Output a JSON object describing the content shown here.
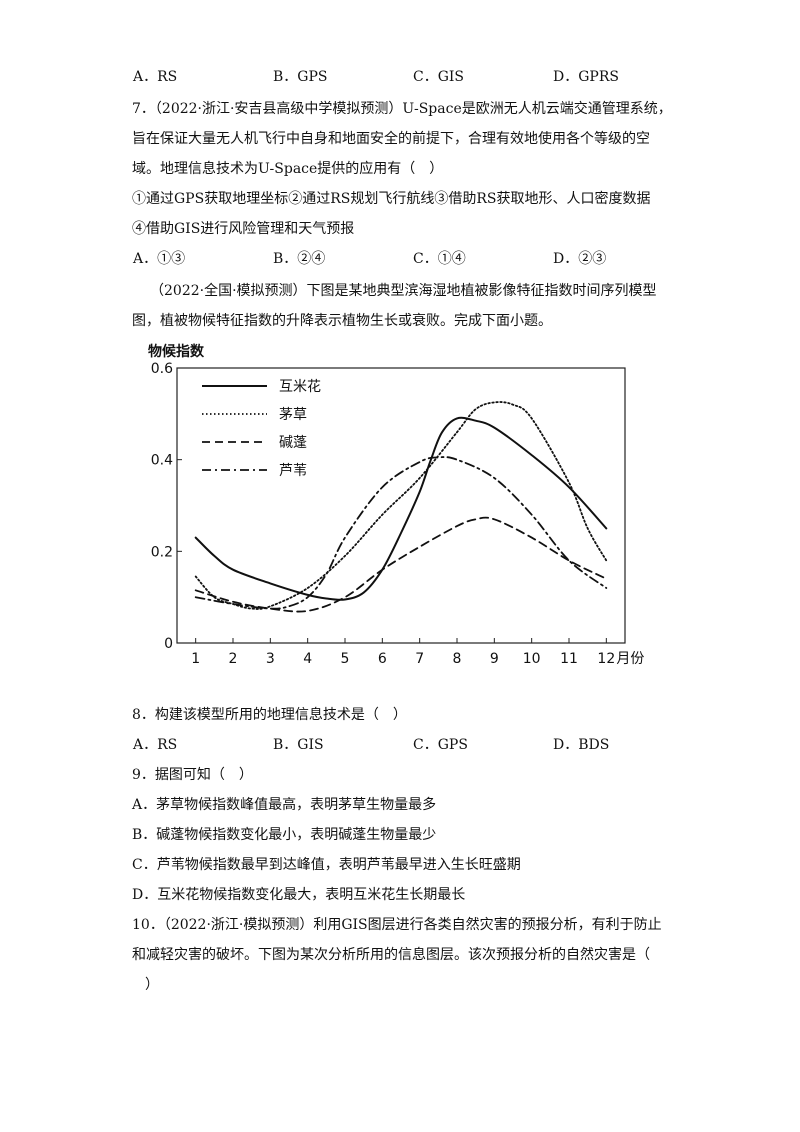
{
  "q6_options": [
    "A．RS",
    "B．GPS",
    "C．GIS",
    "D．GPRS"
  ],
  "q7": {
    "lines": [
      "7．（2022·浙江·安吉县高级中学模拟预测）U-Space是欧洲无人机云端交通管理系统，",
      "旨在保证大量无人机飞行中自身和地面安全的前提下，合理有效地使用各个等级的空",
      "域。地理信息技术为U-Space提供的应用有（　）",
      "①通过GPS获取地理坐标②通过RS规划飞行航线③借助RS获取地形、人口密度数据",
      "④借助GIS进行风险管理和天气预报"
    ],
    "options": [
      "A．①③",
      "B．②④",
      "C．①④",
      "D．②③"
    ]
  },
  "intro": [
    "（2022·全国·模拟预测）下图是某地典型滨海湿地植被影像特征指数时间序列模型",
    "图，植被物候特征指数的升降表示植物生长或衰败。完成下面小题。"
  ],
  "chart_data": {
    "type": "line",
    "ylabel": "物候指数",
    "xlabel": "月份",
    "ylim": [
      0,
      0.6
    ],
    "yticks": [
      "0",
      "0.2",
      "0.4",
      "0.6"
    ],
    "xticks": [
      "1",
      "2",
      "3",
      "4",
      "5",
      "6",
      "7",
      "8",
      "9",
      "10",
      "11",
      "12"
    ],
    "last_tick_suffix": "月份",
    "legend_position": "top-left",
    "series": [
      {
        "name": "互米花",
        "style": "solid",
        "x": [
          1,
          1.5,
          2,
          3,
          4,
          4.5,
          5,
          5.5,
          6,
          6.5,
          7,
          7.3,
          7.6,
          8,
          8.5,
          9,
          10,
          11,
          12
        ],
        "y": [
          0.23,
          0.19,
          0.16,
          0.13,
          0.105,
          0.097,
          0.095,
          0.11,
          0.16,
          0.24,
          0.33,
          0.4,
          0.46,
          0.49,
          0.485,
          0.47,
          0.41,
          0.34,
          0.25
        ]
      },
      {
        "name": "茅草",
        "style": "dotted",
        "x": [
          1,
          1.5,
          2,
          2.5,
          3,
          4,
          5,
          6,
          7,
          8,
          8.5,
          9,
          9.5,
          10,
          11,
          11.5,
          12
        ],
        "y": [
          0.145,
          0.1,
          0.085,
          0.075,
          0.08,
          0.12,
          0.19,
          0.28,
          0.36,
          0.46,
          0.51,
          0.525,
          0.52,
          0.49,
          0.35,
          0.25,
          0.18
        ]
      },
      {
        "name": "碱蓬",
        "style": "dashed",
        "x": [
          1,
          2,
          3,
          4,
          5,
          6,
          7,
          8,
          8.5,
          9,
          10,
          11,
          12
        ],
        "y": [
          0.115,
          0.09,
          0.075,
          0.07,
          0.1,
          0.16,
          0.21,
          0.255,
          0.27,
          0.27,
          0.23,
          0.18,
          0.14
        ]
      },
      {
        "name": "芦苇",
        "style": "dashdot",
        "x": [
          1,
          2,
          3,
          3.5,
          4,
          4.5,
          5,
          6,
          7,
          7.5,
          8,
          9,
          10,
          11,
          12
        ],
        "y": [
          0.1,
          0.085,
          0.075,
          0.08,
          0.1,
          0.15,
          0.23,
          0.34,
          0.395,
          0.405,
          0.4,
          0.36,
          0.28,
          0.18,
          0.12
        ]
      }
    ]
  },
  "q8": {
    "stem": "8．构建该模型所用的地理信息技术是（　）",
    "options": [
      "A．RS",
      "B．GIS",
      "C．GPS",
      "D．BDS"
    ]
  },
  "q9": {
    "stem": "9．据图可知（　）",
    "options": [
      "A．茅草物候指数峰值最高，表明茅草生物量最多",
      "B．碱蓬物候指数变化最小，表明碱蓬生物量最少",
      "C．芦苇物候指数最早到达峰值，表明芦苇最早进入生长旺盛期",
      "D．互米花物候指数变化最大，表明互米花生长期最长"
    ]
  },
  "q10": {
    "lines": [
      "10．（2022·浙江·模拟预测）利用GIS图层进行各类自然灾害的预报分析，有利于防止",
      "和减轻灾害的破坏。下图为某次分析所用的信息图层。该次预报分析的自然灾害是（",
      "）"
    ]
  }
}
